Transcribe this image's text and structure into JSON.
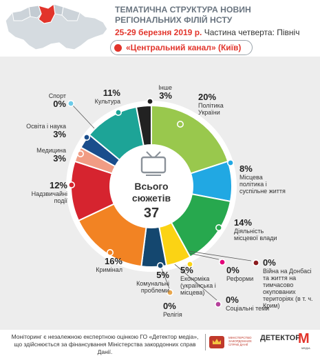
{
  "header": {
    "title": "ТЕМАТИЧНА СТРУКТУРА НОВИН РЕГІОНАЛЬНИХ ФІЛІЙ НСТУ",
    "date": "25-29 березня 2019 р.",
    "part": "Частина четверта: Північ",
    "channel": "«Центральний канал» (Київ)"
  },
  "center": {
    "line1": "Всього сюжетів",
    "total": "37"
  },
  "chart_data": {
    "type": "pie",
    "variant": "donut",
    "total": 37,
    "slices": [
      {
        "label": "Політика України",
        "value": 20,
        "pct": "20%",
        "color": "#99c84d"
      },
      {
        "label": "Місцева політика і суспільне життя",
        "value": 8,
        "pct": "8%",
        "color": "#21a8e3"
      },
      {
        "label": "Діяльність місцевої влади",
        "value": 14,
        "pct": "14%",
        "color": "#27a84e"
      },
      {
        "label": "Війна на Донбасі та життя на тимчасово окупованих територіях (в т. ч. Крим)",
        "value": 0,
        "pct": "0%",
        "color": "#8b1c1f"
      },
      {
        "label": "Соціальні теми",
        "value": 0,
        "pct": "0%",
        "color": "#b5429b"
      },
      {
        "label": "Реформи",
        "value": 0,
        "pct": "0%",
        "color": "#e3007a"
      },
      {
        "label": "Економіка (українська і місцева)",
        "value": 5,
        "pct": "5%",
        "color": "#fbd314"
      },
      {
        "label": "Релігія",
        "value": 0,
        "pct": "0%",
        "color": "#e8a64d"
      },
      {
        "label": "Комунальні проблеми",
        "value": 5,
        "pct": "5%",
        "color": "#14476f"
      },
      {
        "label": "Кримінал",
        "value": 16,
        "pct": "16%",
        "color": "#f28323"
      },
      {
        "label": "Надзвичайні події",
        "value": 12,
        "pct": "12%",
        "color": "#d6242f"
      },
      {
        "label": "Медицина",
        "value": 3,
        "pct": "3%",
        "color": "#f19c84"
      },
      {
        "label": "Освіта і наука",
        "value": 3,
        "pct": "3%",
        "color": "#1a4d8c"
      },
      {
        "label": "Спорт",
        "value": 0,
        "pct": "0%",
        "color": "#6ccbe9"
      },
      {
        "label": "Культура",
        "value": 11,
        "pct": "11%",
        "color": "#1da497"
      },
      {
        "label": "Інше",
        "value": 3,
        "pct": "3%",
        "color": "#222222"
      }
    ]
  },
  "footer": {
    "text": "Моніторинг є незалежною експертною оцінкою ГО «Детектор медіа», що здійснюється за фінансування Міністерства закордонних справ Данії.",
    "logo1": "МІНІСТЕРСТВО ЗАКОРДОННИХ СПРАВ ДАНІЇ",
    "logo2": "ДЕТЕКТОР",
    "logo2_m": "M",
    "logo2_sub": "МЕДІА"
  }
}
